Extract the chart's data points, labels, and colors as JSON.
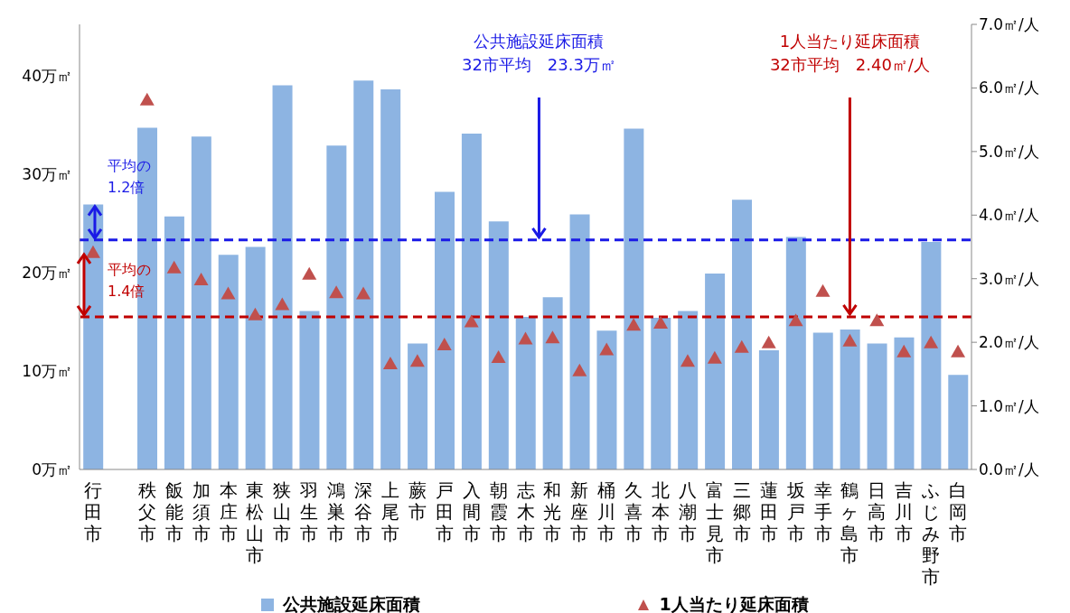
{
  "chart_data": {
    "type": "bar",
    "categories": [
      "行田市",
      null,
      "秩父市",
      "飯能市",
      "加須市",
      "本庄市",
      "東松山市",
      "狭山市",
      "羽生市",
      "鴻巣市",
      "深谷市",
      "上尾市",
      "蕨市",
      "戸田市",
      "入間市",
      "朝霞市",
      "志木市",
      "和光市",
      "新座市",
      "桶川市",
      "久喜市",
      "北本市",
      "八潮市",
      "富士見市",
      "三郷市",
      "蓮田市",
      "坂戸市",
      "幸手市",
      "鶴ヶ島市",
      "日高市",
      "吉川市",
      "ふじみ野市",
      "白岡市"
    ],
    "series": [
      {
        "name": "公共施設延床面積",
        "color": "#8db4e2",
        "values": [
          26.9,
          null,
          34.7,
          25.7,
          33.8,
          21.8,
          22.6,
          39.0,
          16.1,
          32.9,
          39.5,
          38.6,
          12.8,
          28.2,
          34.1,
          25.2,
          15.5,
          17.5,
          25.9,
          14.1,
          34.6,
          15.4,
          16.1,
          19.9,
          27.4,
          12.1,
          23.6,
          13.9,
          14.2,
          12.8,
          13.4,
          23.1,
          9.6
        ]
      },
      {
        "name": "1人当たり延床面積",
        "type": "scatter",
        "axis": "y2",
        "color": "#c0504d",
        "values": [
          3.41,
          null,
          5.81,
          3.17,
          2.98,
          2.76,
          2.43,
          2.59,
          3.07,
          2.78,
          2.76,
          1.66,
          1.7,
          1.96,
          2.32,
          1.76,
          2.05,
          2.07,
          1.55,
          1.88,
          2.27,
          2.3,
          1.7,
          1.75,
          1.92,
          1.99,
          2.34,
          2.8,
          2.02,
          2.34,
          1.85,
          1.99,
          1.85
        ]
      }
    ],
    "ylim": [
      0,
      45.2
    ],
    "yticks": [
      {
        "value": 0,
        "label": "0万㎡"
      },
      {
        "value": 10,
        "label": "10万㎡"
      },
      {
        "value": 20,
        "label": "20万㎡"
      },
      {
        "value": 30,
        "label": "30万㎡"
      },
      {
        "value": 40,
        "label": "40万㎡"
      }
    ],
    "y2lim": [
      0,
      7
    ],
    "y2ticks": [
      {
        "value": 0,
        "label": "0.0㎡/人"
      },
      {
        "value": 1,
        "label": "1.0㎡/人"
      },
      {
        "value": 2,
        "label": "2.0㎡/人"
      },
      {
        "value": 3,
        "label": "3.0㎡/人"
      },
      {
        "value": 4,
        "label": "4.0㎡/人"
      },
      {
        "value": 5,
        "label": "5.0㎡/人"
      },
      {
        "value": 6,
        "label": "6.0㎡/人"
      },
      {
        "value": 7,
        "label": "7.0㎡/人"
      }
    ],
    "ref_lines": [
      {
        "axis": "y",
        "value": 23.3,
        "label": "公共施設延床面積\n32市平均　23.3万㎡",
        "color": "#1a1ae6",
        "line_style": "dashed"
      },
      {
        "axis": "y2",
        "value": 2.4,
        "label": "1人当たり延床面積\n32市平均　2.40㎡/人",
        "color": "#c00000",
        "line_style": "dashed"
      }
    ],
    "annotations": [
      "平均の\n1.2倍",
      "平均の\n1.4倍"
    ],
    "marker": "triangle",
    "legend": "bottom"
  }
}
